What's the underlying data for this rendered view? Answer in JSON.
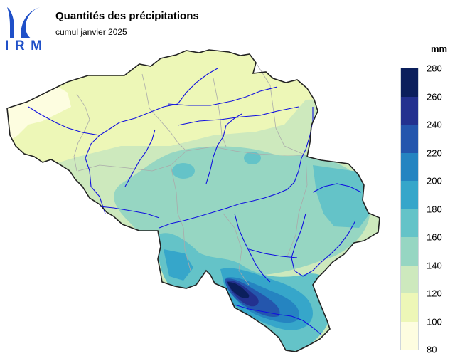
{
  "logo": {
    "text": "IRM",
    "color": "#1f50c8"
  },
  "header": {
    "title": "Quantités des précipitations",
    "subtitle": "cumul janvier 2025"
  },
  "legend": {
    "unit": "mm",
    "ticks": [
      "280",
      "260",
      "240",
      "220",
      "200",
      "180",
      "160",
      "140",
      "120",
      "100",
      "80"
    ],
    "colors": [
      "#0b1f5c",
      "#23318f",
      "#2456ad",
      "#2584c1",
      "#36a6ca",
      "#64c3c8",
      "#96d6c2",
      "#cde9bd",
      "#edf7b7",
      "#fdfde0"
    ]
  },
  "map": {
    "country": "Belgique",
    "colors": {
      "border": "#222222",
      "rivers": "#1010e0",
      "provinces": "#aaaaaa"
    }
  }
}
